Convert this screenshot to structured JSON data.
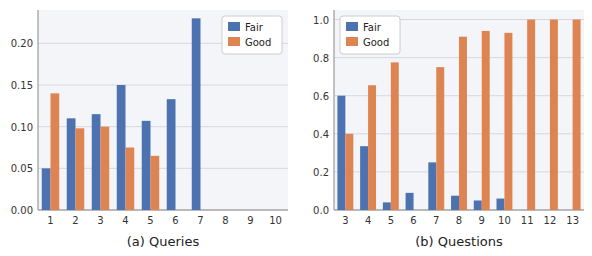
{
  "chart_data": [
    {
      "type": "bar",
      "categories": [
        "1",
        "2",
        "3",
        "4",
        "5",
        "6",
        "7",
        "8",
        "9",
        "10"
      ],
      "series": [
        {
          "name": "Fair",
          "color": "#4C72B0",
          "values": [
            0.05,
            0.11,
            0.115,
            0.15,
            0.107,
            0.133,
            0.23,
            0,
            0,
            0
          ]
        },
        {
          "name": "Good",
          "color": "#DD8452",
          "values": [
            0.14,
            0.098,
            0.1,
            0.075,
            0.065,
            0,
            0,
            0,
            0,
            0
          ]
        }
      ],
      "xlabel": "(a) Queries",
      "ylim": [
        0,
        0.24
      ],
      "yticks": [
        {
          "value": 0,
          "label": "0.00"
        },
        {
          "value": 0.05,
          "label": "0.05"
        },
        {
          "value": 0.1,
          "label": "0.10"
        },
        {
          "value": 0.15,
          "label": "0.15"
        },
        {
          "value": 0.2,
          "label": "0.20"
        }
      ],
      "grid": true,
      "legend": "upper-right"
    },
    {
      "type": "bar",
      "categories": [
        "3",
        "4",
        "5",
        "6",
        "7",
        "8",
        "9",
        "10",
        "11",
        "12",
        "13"
      ],
      "series": [
        {
          "name": "Fair",
          "color": "#4C72B0",
          "values": [
            0.6,
            0.335,
            0.04,
            0.09,
            0.25,
            0.075,
            0.05,
            0.06,
            0,
            0,
            0
          ]
        },
        {
          "name": "Good",
          "color": "#DD8452",
          "values": [
            0.4,
            0.655,
            0.775,
            0,
            0.75,
            0.91,
            0.94,
            0.93,
            1.0,
            1.0,
            1.0
          ]
        }
      ],
      "xlabel": "(b) Questions",
      "ylim": [
        0,
        1.05
      ],
      "yticks": [
        {
          "value": 0,
          "label": "0.0"
        },
        {
          "value": 0.2,
          "label": "0.2"
        },
        {
          "value": 0.4,
          "label": "0.4"
        },
        {
          "value": 0.6,
          "label": "0.6"
        },
        {
          "value": 0.8,
          "label": "0.8"
        },
        {
          "value": 1.0,
          "label": "1.0"
        }
      ],
      "grid": true,
      "legend": "upper-left"
    }
  ]
}
